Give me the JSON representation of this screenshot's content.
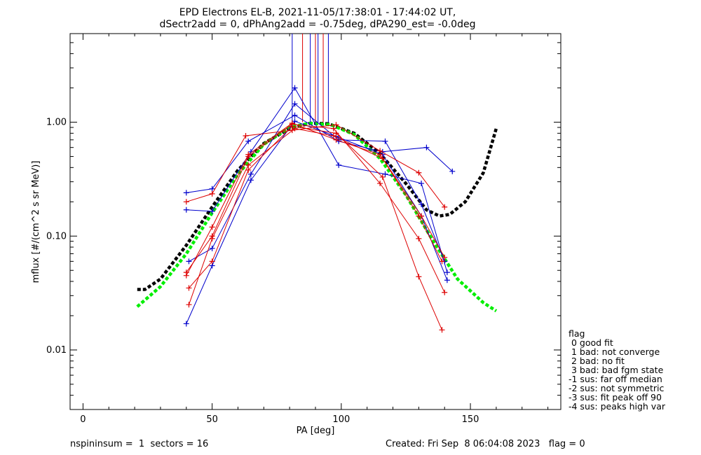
{
  "chart_data": {
    "type": "scatter",
    "title_line1": "EPD Electrons EL-B, 2021-11-05/17:38:01 - 17:44:02 UT,",
    "title_line2": "dSectr2add = 0, dPhAng2add = -0.75deg, dPA290_est=  -0.0deg",
    "xlabel": "PA [deg]",
    "ylabel": "mflux [#/(cm^2 s sr MeV)]",
    "xlim": [
      -5,
      185
    ],
    "ylim": [
      0.003,
      6.0
    ],
    "y_scale": "log",
    "xticks": [
      0,
      50,
      100,
      150
    ],
    "xtick_labels": [
      "0",
      "50",
      "100",
      "150"
    ],
    "yticks": [
      0.01,
      0.1,
      1.0
    ],
    "ytick_labels": [
      "0.01",
      "0.10",
      "1.00"
    ],
    "marker": "plus",
    "colors": {
      "blue": "#0000cc",
      "red": "#dd0000",
      "black": "#000000",
      "green": "#00ee00"
    },
    "series": [
      {
        "color": "blue",
        "points": [
          [
            40,
            0.24
          ],
          [
            50,
            0.26
          ],
          [
            64,
            0.68
          ],
          [
            82,
            1.15
          ],
          [
            99,
            0.68
          ],
          [
            116,
            0.55
          ],
          [
            133,
            0.6
          ],
          [
            143,
            0.37
          ]
        ]
      },
      {
        "color": "blue",
        "points": [
          [
            40,
            0.17
          ],
          [
            50,
            0.165
          ],
          [
            65,
            0.55
          ],
          [
            82,
            2.0
          ],
          [
            99,
            0.42
          ],
          [
            117,
            0.35
          ],
          [
            131,
            0.29
          ],
          [
            141,
            0.048
          ]
        ]
      },
      {
        "color": "blue",
        "points": [
          [
            41,
            0.06
          ],
          [
            50,
            0.078
          ],
          [
            65,
            0.35
          ],
          [
            82,
            1.45
          ],
          [
            99,
            0.7
          ],
          [
            117,
            0.68
          ],
          [
            131,
            0.19
          ],
          [
            140,
            0.06
          ]
        ]
      },
      {
        "color": "blue",
        "points": [
          [
            40,
            0.017
          ],
          [
            50,
            0.055
          ],
          [
            65,
            0.31
          ],
          [
            82,
            1.02
          ],
          [
            98,
            0.75
          ],
          [
            116,
            0.52
          ],
          [
            131,
            0.15
          ],
          [
            141,
            0.041
          ]
        ]
      },
      {
        "color": "red",
        "points": [
          [
            40,
            0.2
          ],
          [
            50,
            0.235
          ],
          [
            63,
            0.76
          ],
          [
            81,
            0.85
          ],
          [
            98,
            0.95
          ],
          [
            115,
            0.56
          ],
          [
            130,
            0.36
          ],
          [
            140,
            0.18
          ]
        ]
      },
      {
        "color": "red",
        "points": [
          [
            40,
            0.048
          ],
          [
            50,
            0.1
          ],
          [
            64,
            0.5
          ],
          [
            81,
            0.96
          ],
          [
            97,
            0.88
          ],
          [
            115,
            0.29
          ],
          [
            130,
            0.095
          ],
          [
            140,
            0.032
          ]
        ]
      },
      {
        "color": "red",
        "points": [
          [
            41,
            0.035
          ],
          [
            50,
            0.06
          ],
          [
            64,
            0.38
          ],
          [
            81,
            0.92
          ],
          [
            98,
            0.8
          ],
          [
            116,
            0.33
          ],
          [
            130,
            0.044
          ],
          [
            139,
            0.015
          ]
        ]
      },
      {
        "color": "red",
        "points": [
          [
            41,
            0.025
          ],
          [
            50,
            0.095
          ],
          [
            64,
            0.42
          ],
          [
            82,
            0.88
          ],
          [
            97,
            0.76
          ],
          [
            116,
            0.48
          ],
          [
            130,
            0.15
          ],
          [
            139,
            0.06
          ]
        ]
      },
      {
        "color": "red",
        "points": [
          [
            40,
            0.045
          ],
          [
            50,
            0.12
          ],
          [
            64,
            0.52
          ],
          [
            81,
            0.98
          ],
          [
            98,
            0.7
          ],
          [
            115,
            0.52
          ],
          [
            131,
            0.15
          ],
          [
            140,
            0.065
          ]
        ]
      }
    ],
    "vertical_markers": [
      {
        "x": 81,
        "color": "blue"
      },
      {
        "x": 85,
        "color": "red"
      },
      {
        "x": 88,
        "color": "blue"
      },
      {
        "x": 90,
        "color": "red"
      },
      {
        "x": 91,
        "color": "blue"
      },
      {
        "x": 93,
        "color": "red"
      },
      {
        "x": 95,
        "color": "blue"
      }
    ],
    "vertical_marker_ytop": 5.5,
    "fit_curves": [
      {
        "color": "black",
        "points": [
          [
            21,
            0.034
          ],
          [
            24,
            0.034
          ],
          [
            30,
            0.042
          ],
          [
            40,
            0.083
          ],
          [
            50,
            0.18
          ],
          [
            60,
            0.38
          ],
          [
            70,
            0.65
          ],
          [
            80,
            0.88
          ],
          [
            88,
            0.98
          ],
          [
            95,
            0.97
          ],
          [
            105,
            0.8
          ],
          [
            115,
            0.53
          ],
          [
            125,
            0.29
          ],
          [
            133,
            0.17
          ],
          [
            138,
            0.15
          ],
          [
            142,
            0.155
          ],
          [
            148,
            0.2
          ],
          [
            155,
            0.36
          ],
          [
            160,
            0.88
          ]
        ]
      },
      {
        "color": "green",
        "points": [
          [
            21,
            0.024
          ],
          [
            30,
            0.036
          ],
          [
            40,
            0.07
          ],
          [
            50,
            0.16
          ],
          [
            60,
            0.35
          ],
          [
            70,
            0.64
          ],
          [
            80,
            0.9
          ],
          [
            88,
            0.98
          ],
          [
            96,
            0.95
          ],
          [
            105,
            0.78
          ],
          [
            115,
            0.48
          ],
          [
            125,
            0.23
          ],
          [
            135,
            0.095
          ],
          [
            145,
            0.042
          ],
          [
            155,
            0.026
          ],
          [
            160,
            0.022
          ]
        ]
      }
    ]
  },
  "legend": {
    "title": "flag",
    "items": [
      " 0 good fit",
      " 1 bad: not converge",
      " 2 bad: no fit",
      " 3 bad: bad fgm state",
      "-1 sus: far off median",
      "-2 sus: not symmetric",
      "-3 sus: fit peak off 90",
      "-4 sus: peaks high var"
    ]
  },
  "footer": {
    "left": "nspininsum =  1  sectors = 16",
    "right": "Created: Fri Sep  8 06:04:08 2023   flag = 0"
  }
}
